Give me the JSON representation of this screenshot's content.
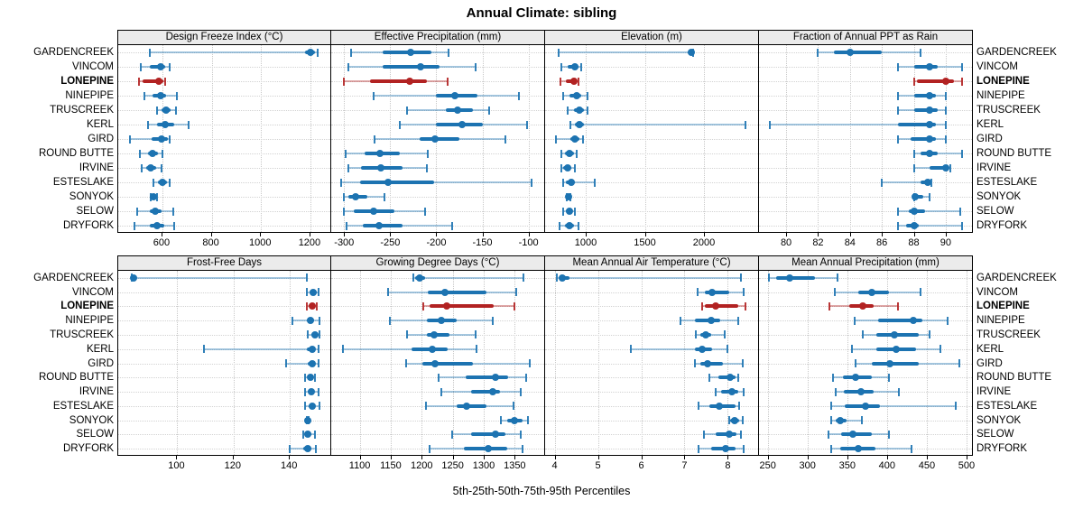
{
  "colors": {
    "site_default": "#1c73b1",
    "site_highlight": "#b22222",
    "header_bg": "#ebebeb",
    "grid": "#c8c8c8",
    "border": "#000000"
  },
  "chart_data": {
    "type": "dot-whisker-percentile",
    "title": "Annual Climate: sibling",
    "footer": "5th-25th-50th-75th-95th Percentiles",
    "percentiles": [
      5,
      25,
      50,
      75,
      95
    ],
    "legend_position": "none",
    "grid": "dotted",
    "sites": [
      "GARDENCREEK",
      "VINCOM",
      "LONEPINE",
      "NINEPIPE",
      "TRUSCREEK",
      "KERL",
      "GIRD",
      "ROUND BUTTE",
      "IRVINE",
      "ESTESLAKE",
      "SONYOK",
      "SELOW",
      "DRYFORK"
    ],
    "highlight_site": "LONEPINE",
    "panels": [
      {
        "title": "Design Freeze Index (°C)",
        "row": 0,
        "col": 0,
        "xlim": [
          421,
          1288
        ],
        "ticks": [
          600,
          800,
          1000,
          1200
        ],
        "values": [
          [
            549,
            1180,
            1199,
            1217,
            1231
          ],
          [
            512,
            549,
            592,
            610,
            628
          ],
          [
            504,
            519,
            585,
            604,
            613
          ],
          [
            528,
            561,
            594,
            616,
            658
          ],
          [
            577,
            598,
            616,
            634,
            655
          ],
          [
            541,
            579,
            613,
            646,
            707
          ],
          [
            467,
            555,
            598,
            622,
            630
          ],
          [
            509,
            543,
            561,
            582,
            601
          ],
          [
            516,
            533,
            553,
            573,
            598
          ],
          [
            565,
            582,
            601,
            618,
            630
          ],
          [
            553,
            557,
            564,
            573,
            579
          ],
          [
            497,
            549,
            570,
            598,
            643
          ],
          [
            488,
            549,
            579,
            606,
            646
          ]
        ]
      },
      {
        "title": "Effective Precipitation (mm)",
        "row": 0,
        "col": 1,
        "xlim": [
          -314,
          -82
        ],
        "ticks": [
          -300,
          -250,
          -200,
          -150,
          -100
        ],
        "values": [
          [
            -292,
            -258,
            -228,
            -205,
            -187
          ],
          [
            -295,
            -258,
            -217,
            -197,
            -157
          ],
          [
            -300,
            -272,
            -229,
            -210,
            -188
          ],
          [
            -268,
            -200,
            -180,
            -155,
            -110
          ],
          [
            -232,
            -190,
            -177,
            -160,
            -143
          ],
          [
            -240,
            -200,
            -172,
            -150,
            -102
          ],
          [
            -267,
            -218,
            -201,
            -175,
            -125
          ],
          [
            -298,
            -278,
            -261,
            -240,
            -209
          ],
          [
            -295,
            -282,
            -260,
            -237,
            -210
          ],
          [
            -303,
            -283,
            -252,
            -202,
            -97
          ],
          [
            -300,
            -295,
            -288,
            -275,
            -256
          ],
          [
            -300,
            -290,
            -268,
            -245,
            -212
          ],
          [
            -297,
            -280,
            -262,
            -237,
            -183
          ]
        ]
      },
      {
        "title": "Elevation (m)",
        "row": 0,
        "col": 2,
        "xlim": [
          656,
          2466
        ],
        "ticks": [
          1000,
          1500,
          2000
        ],
        "values": [
          [
            770,
            1860,
            1890,
            1900,
            1910
          ],
          [
            796,
            847,
            911,
            937,
            962
          ],
          [
            789,
            834,
            899,
            924,
            941
          ],
          [
            809,
            860,
            924,
            962,
            1013
          ],
          [
            847,
            899,
            949,
            987,
            1013
          ],
          [
            873,
            911,
            949,
            987,
            2348
          ],
          [
            746,
            873,
            911,
            949,
            975
          ],
          [
            796,
            822,
            860,
            899,
            924
          ],
          [
            796,
            808,
            847,
            880,
            911
          ],
          [
            809,
            834,
            880,
            911,
            1076
          ],
          [
            840,
            848,
            855,
            865,
            873
          ],
          [
            808,
            834,
            860,
            885,
            906
          ],
          [
            779,
            822,
            865,
            899,
            941
          ]
        ]
      },
      {
        "title": "Fraction of Annual PPT as Rain",
        "row": 0,
        "col": 3,
        "xlim": [
          78.3,
          91.7
        ],
        "ticks": [
          80,
          82,
          84,
          86,
          88,
          90
        ],
        "values": [
          [
            82,
            83,
            84,
            86,
            88.4
          ],
          [
            87,
            88,
            89,
            89.5,
            91
          ],
          [
            88,
            88.2,
            90,
            90.5,
            91
          ],
          [
            87,
            88,
            89,
            89.4,
            90
          ],
          [
            87,
            88,
            89,
            89.5,
            90
          ],
          [
            79,
            87,
            89,
            89.4,
            90
          ],
          [
            87,
            87.8,
            89,
            89.4,
            90
          ],
          [
            88,
            88.4,
            89,
            89.5,
            91
          ],
          [
            88,
            89,
            90,
            90.1,
            90.3
          ],
          [
            86,
            88.4,
            88.9,
            89,
            89.1
          ],
          [
            88,
            88.05,
            88.1,
            88.6,
            89
          ],
          [
            87,
            87.7,
            88,
            88.7,
            90.9
          ],
          [
            87,
            87.5,
            88,
            88.3,
            91
          ]
        ]
      },
      {
        "title": "Frost-Free Days",
        "row": 1,
        "col": 0,
        "xlim": [
          79,
          155
        ],
        "ticks": [
          100,
          120,
          140
        ],
        "values": [
          [
            83.8,
            84,
            84.5,
            85.5,
            146
          ],
          [
            146,
            147,
            148.3,
            149.5,
            150.1
          ],
          [
            146,
            147,
            148,
            149,
            149.6
          ],
          [
            141,
            146,
            147.2,
            148.7,
            150.4
          ],
          [
            146.2,
            147.5,
            149,
            150.1,
            150.4
          ],
          [
            109.6,
            146,
            148,
            149,
            150.1
          ],
          [
            138.7,
            146.2,
            148,
            149,
            150.1
          ],
          [
            145.3,
            146.4,
            147.2,
            148.3,
            149
          ],
          [
            145.3,
            146.2,
            147.5,
            148.5,
            150.1
          ],
          [
            145.3,
            146.6,
            148,
            149,
            150.4
          ],
          [
            145.9,
            146,
            146.2,
            146.4,
            146.6
          ],
          [
            144.8,
            145.3,
            146.2,
            147.5,
            149
          ],
          [
            139.8,
            144.8,
            146.2,
            147.5,
            149.3
          ]
        ]
      },
      {
        "title": "Growing Degree Days (°C)",
        "row": 1,
        "col": 1,
        "xlim": [
          1054,
          1399
        ],
        "ticks": [
          1100,
          1150,
          1200,
          1250,
          1300,
          1350
        ],
        "values": [
          [
            1187,
            1190,
            1196,
            1205,
            1364
          ],
          [
            1146,
            1210,
            1237,
            1304,
            1352
          ],
          [
            1203,
            1213,
            1241,
            1316,
            1350
          ],
          [
            1148,
            1208,
            1232,
            1256,
            1314
          ],
          [
            1177,
            1208,
            1220,
            1244,
            1287
          ],
          [
            1073,
            1184,
            1217,
            1242,
            1289
          ],
          [
            1175,
            1201,
            1221,
            1283,
            1374
          ],
          [
            1227,
            1271,
            1319,
            1340,
            1369
          ],
          [
            1232,
            1280,
            1314,
            1326,
            1360
          ],
          [
            1207,
            1256,
            1273,
            1304,
            1348
          ],
          [
            1328,
            1338,
            1350,
            1362,
            1372
          ],
          [
            1249,
            1280,
            1319,
            1335,
            1360
          ],
          [
            1213,
            1268,
            1308,
            1338,
            1362
          ]
        ]
      },
      {
        "title": "Mean Annual Air Temperature (°C)",
        "row": 1,
        "col": 2,
        "xlim": [
          3.78,
          8.72
        ],
        "ticks": [
          4,
          5,
          6,
          7,
          8
        ],
        "values": [
          [
            4.05,
            4.12,
            4.18,
            4.35,
            8.3
          ],
          [
            7.3,
            7.47,
            7.64,
            8.03,
            8.37
          ],
          [
            7.4,
            7.47,
            7.71,
            8.24,
            8.4
          ],
          [
            6.9,
            7.23,
            7.61,
            7.82,
            8.24
          ],
          [
            7.26,
            7.37,
            7.5,
            7.61,
            7.92
          ],
          [
            5.76,
            7.23,
            7.4,
            7.64,
            8.0
          ],
          [
            7.23,
            7.37,
            7.54,
            7.89,
            8.34
          ],
          [
            7.57,
            7.78,
            8.06,
            8.17,
            8.24
          ],
          [
            7.71,
            7.85,
            8.1,
            8.24,
            8.37
          ],
          [
            7.33,
            7.57,
            7.8,
            8.17,
            8.27
          ],
          [
            8.03,
            8.06,
            8.15,
            8.27,
            8.34
          ],
          [
            7.44,
            7.71,
            8.03,
            8.2,
            8.3
          ],
          [
            7.32,
            7.61,
            7.94,
            8.17,
            8.37
          ]
        ]
      },
      {
        "title": "Mean Annual Precipitation (mm)",
        "row": 1,
        "col": 3,
        "xlim": [
          239,
          508
        ],
        "ticks": [
          250,
          300,
          350,
          400,
          450,
          500
        ],
        "values": [
          [
            251,
            260,
            278,
            309,
            338
          ],
          [
            334,
            364,
            381,
            402,
            442
          ],
          [
            327,
            353,
            370,
            383,
            414
          ],
          [
            359,
            389,
            433,
            444,
            476
          ],
          [
            370,
            387,
            409,
            440,
            453
          ],
          [
            356,
            387,
            412,
            436,
            467
          ],
          [
            361,
            381,
            404,
            440,
            491
          ],
          [
            332,
            345,
            361,
            381,
            403
          ],
          [
            335,
            346,
            367,
            383,
            415
          ],
          [
            330,
            347,
            373,
            391,
            487
          ],
          [
            330,
            336,
            341,
            349,
            368
          ],
          [
            326,
            342,
            357,
            381,
            403
          ],
          [
            330,
            341,
            364,
            385,
            431
          ]
        ]
      }
    ]
  }
}
